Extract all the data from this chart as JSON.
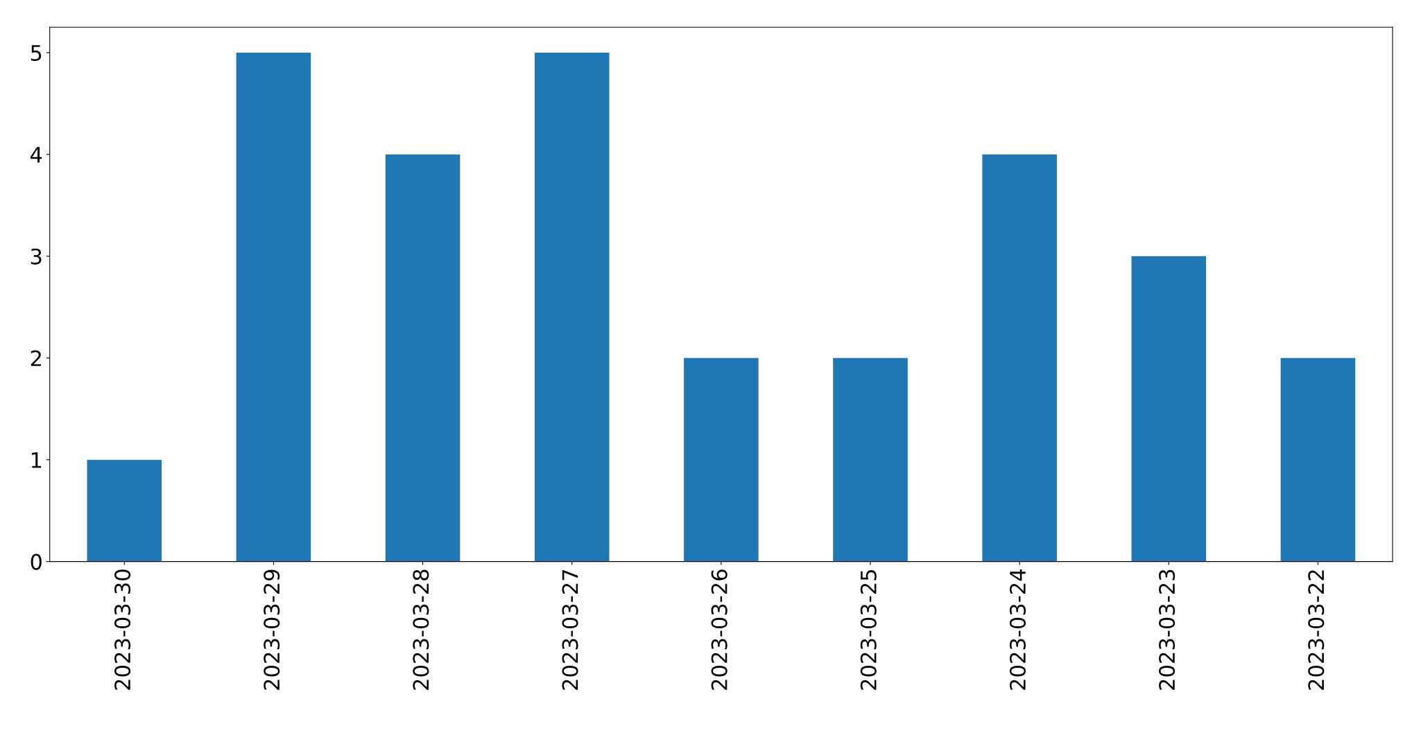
{
  "chart_data": {
    "type": "bar",
    "categories": [
      "2023-03-30",
      "2023-03-29",
      "2023-03-28",
      "2023-03-27",
      "2023-03-26",
      "2023-03-25",
      "2023-03-24",
      "2023-03-23",
      "2023-03-22"
    ],
    "values": [
      1,
      5,
      4,
      5,
      2,
      2,
      4,
      3,
      2
    ],
    "color": "#1f77b4",
    "ylim": [
      0,
      5.25
    ],
    "yticks": [
      0,
      1,
      2,
      3,
      4,
      5
    ],
    "grid": false,
    "legend": false
  }
}
